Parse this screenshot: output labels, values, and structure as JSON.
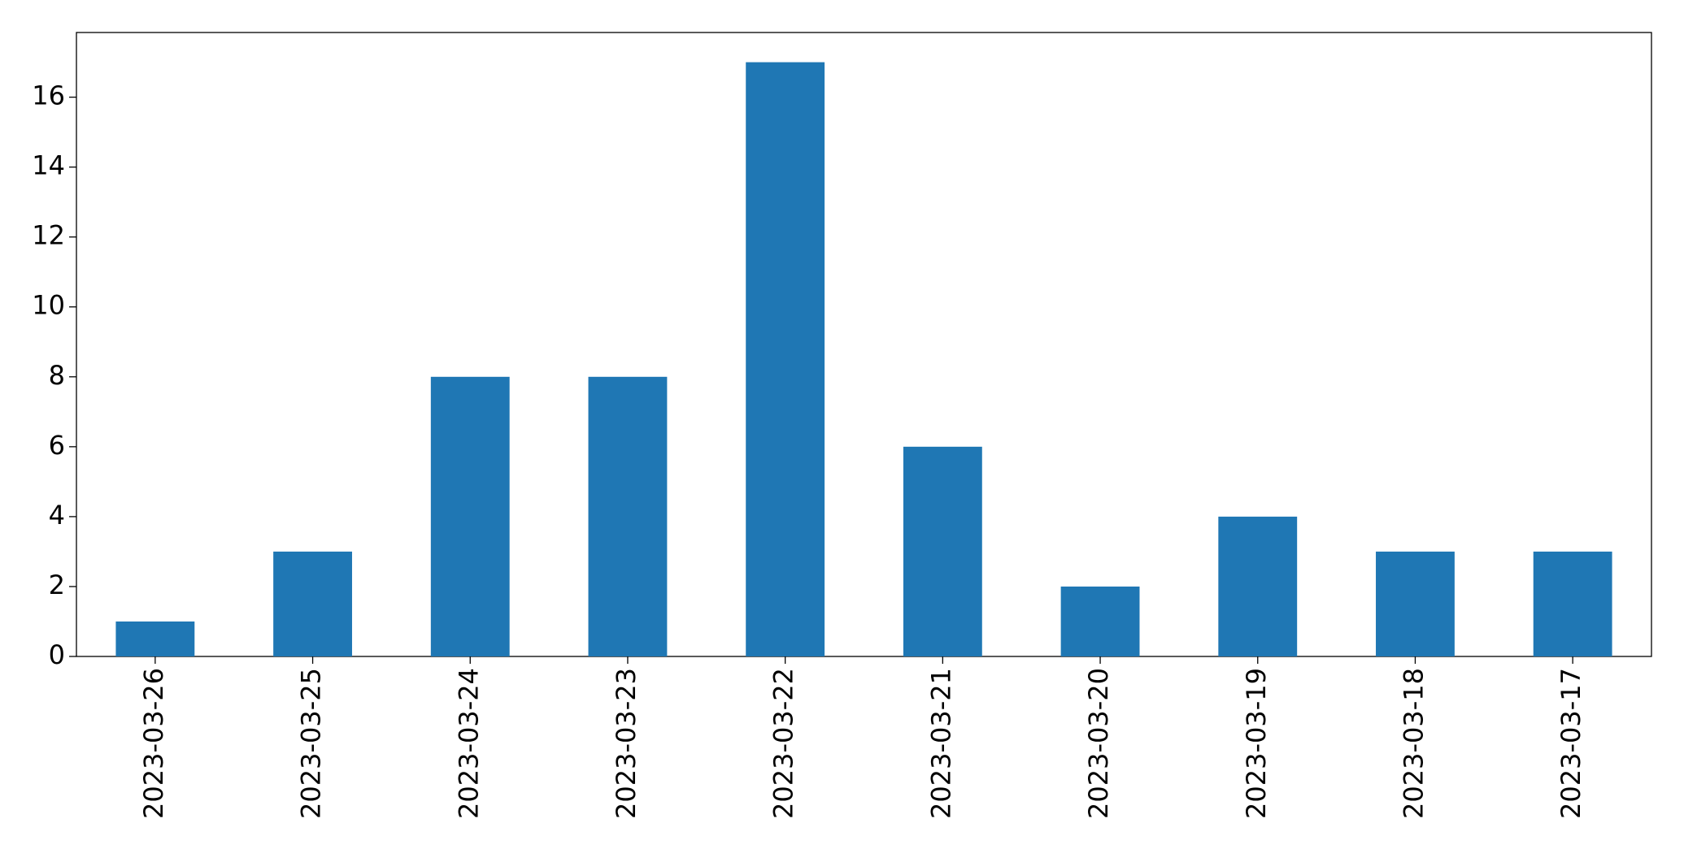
{
  "chart_data": {
    "type": "bar",
    "categories": [
      "2023-03-26",
      "2023-03-25",
      "2023-03-24",
      "2023-03-23",
      "2023-03-22",
      "2023-03-21",
      "2023-03-20",
      "2023-03-19",
      "2023-03-18",
      "2023-03-17"
    ],
    "values": [
      1,
      3,
      8,
      8,
      17,
      6,
      2,
      4,
      3,
      3
    ],
    "color": "#1f77b4",
    "ylim": [
      0,
      17.85
    ],
    "yticks": [
      0,
      2,
      4,
      6,
      8,
      10,
      12,
      14,
      16
    ],
    "grid": false
  }
}
